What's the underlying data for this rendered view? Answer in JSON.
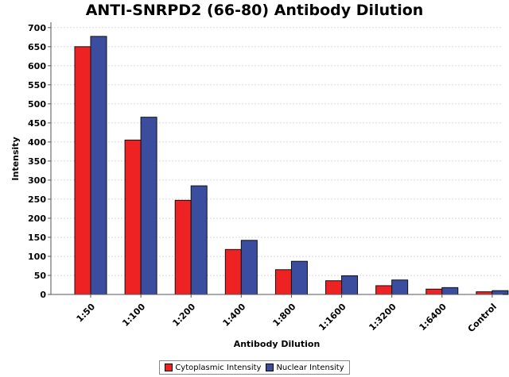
{
  "chart_data": {
    "type": "bar",
    "title": "ANTI-SNRPD2 (66-80) Antibody Dilution",
    "xlabel": "Antibody Dilution",
    "ylabel": "Intensity",
    "ylim": [
      0,
      710
    ],
    "yticks": [
      0,
      50,
      100,
      150,
      200,
      250,
      300,
      350,
      400,
      450,
      500,
      550,
      600,
      650,
      700
    ],
    "grid": true,
    "legend_position": "bottom",
    "categories": [
      "1:50",
      "1:100",
      "1:200",
      "1:400",
      "1:800",
      "1:1600",
      "1:3200",
      "1:6400",
      "Control"
    ],
    "series": [
      {
        "name": "Cytoplasmic Intensity",
        "color": "#ee2222",
        "values": [
          650,
          405,
          247,
          118,
          65,
          36,
          23,
          14,
          7
        ]
      },
      {
        "name": "Nuclear Intensity",
        "color": "#3a4d9e",
        "values": [
          677,
          465,
          285,
          142,
          87,
          49,
          38,
          18,
          10
        ]
      }
    ]
  }
}
